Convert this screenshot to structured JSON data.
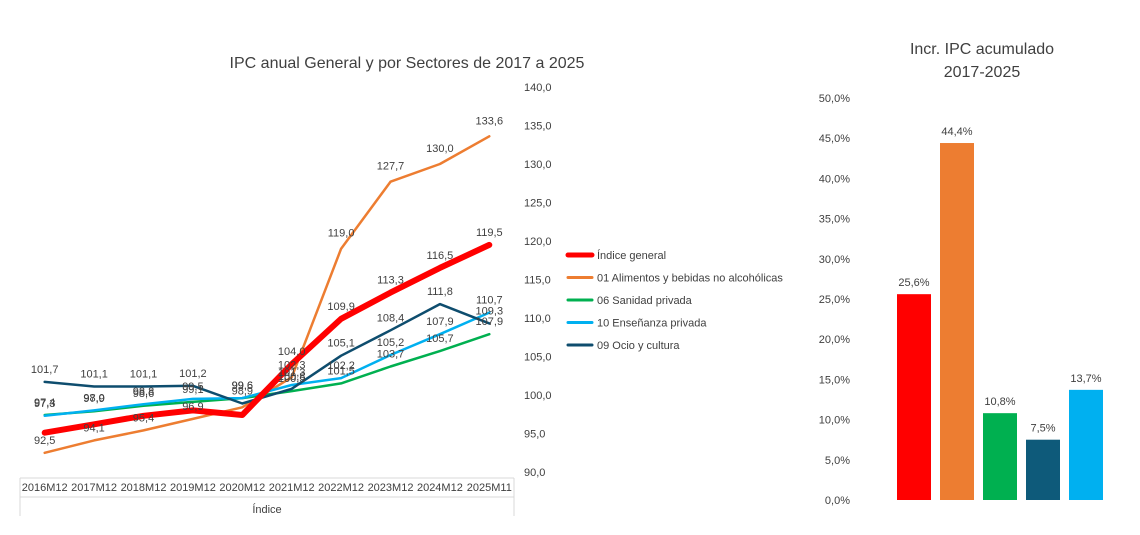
{
  "chart_data": [
    {
      "type": "line",
      "title": "IPC anual General y por Sectores de 2017 a 2025",
      "xlabel": "Índice",
      "ylabel": "",
      "ylim": [
        90,
        140
      ],
      "y_ticks": [
        "140,0",
        "135,0",
        "130,0",
        "125,0",
        "120,0",
        "115,0",
        "110,0",
        "105,0",
        "100,0",
        "95,0",
        "90,0"
      ],
      "y_tick_values": [
        140,
        135,
        130,
        125,
        120,
        115,
        110,
        105,
        100,
        95,
        90
      ],
      "categories": [
        "2016M12",
        "2017M12",
        "2018M12",
        "2019M12",
        "2020M12",
        "2021M12",
        "2022M12",
        "2023M12",
        "2024M12",
        "2025M11"
      ],
      "legend_position": "right",
      "series": [
        {
          "name": "Índice general",
          "color": "#ff0000",
          "values": [
            95.1,
            96.2,
            97.3,
            98.0,
            97.4,
            104.0,
            109.9,
            113.3,
            116.5,
            119.5
          ],
          "labels": [
            "",
            "",
            "",
            "",
            "",
            "104,0",
            "109,9",
            "113,3",
            "116,5",
            "119,5"
          ]
        },
        {
          "name": "01 Alimentos y bebidas no alcohólicas",
          "color": "#ed7d31",
          "values": [
            92.5,
            94.1,
            95.4,
            96.9,
            98.4,
            102.3,
            119.0,
            127.7,
            130.0,
            133.6
          ],
          "labels": [
            "92,5",
            "94,1",
            "95,4",
            "96,9",
            "",
            "102,3",
            "119,0",
            "127,7",
            "130,0",
            "133,6"
          ]
        },
        {
          "name": "06 Sanidad privada",
          "color": "#00b050",
          "values": [
            97.4,
            97.9,
            98.6,
            99.1,
            99.6,
            100.5,
            101.5,
            103.7,
            105.7,
            107.9
          ],
          "labels": [
            "97,4",
            "97,9",
            "98,6",
            "99,1",
            "99,6",
            "100,5",
            "101,5",
            "103,7",
            "105,7",
            "107,9"
          ]
        },
        {
          "name": "10 Enseñanza privada",
          "color": "#00b0f0",
          "values": [
            97.3,
            98.0,
            98.8,
            99.5,
            99.6,
            101.3,
            102.2,
            105.2,
            107.9,
            110.7
          ],
          "labels": [
            "97,3",
            "98,0",
            "98,8",
            "99,5",
            "99,6",
            "101,3",
            "102,2",
            "105,2",
            "107,9",
            "110,7"
          ]
        },
        {
          "name": "09 Ocio y cultura",
          "color": "#0e4d6e",
          "values": [
            101.7,
            101.1,
            101.1,
            101.2,
            98.9,
            100.8,
            105.1,
            108.4,
            111.8,
            109.3
          ],
          "labels": [
            "101,7",
            "101,1",
            "101,1",
            "101,2",
            "98,9",
            "100,8",
            "105,1",
            "108,4",
            "111,8",
            "109,3"
          ]
        }
      ]
    },
    {
      "type": "bar",
      "title_lines": [
        "Incr. IPC acumulado",
        "2017-2025"
      ],
      "ylim": [
        0,
        50
      ],
      "y_ticks": [
        "50,0%",
        "45,0%",
        "40,0%",
        "35,0%",
        "30,0%",
        "25,0%",
        "20,0%",
        "15,0%",
        "10,0%",
        "5,0%",
        "0,0%"
      ],
      "y_tick_values": [
        50,
        45,
        40,
        35,
        30,
        25,
        20,
        15,
        10,
        5,
        0
      ],
      "values": [
        25.6,
        44.4,
        10.8,
        7.5,
        13.7
      ],
      "labels": [
        "25,6%",
        "44,4%",
        "10,8%",
        "7,5%",
        "13,7%"
      ],
      "colors": [
        "#ff0000",
        "#ed7d31",
        "#00b050",
        "#0e5a7a",
        "#00b0f0"
      ]
    }
  ]
}
